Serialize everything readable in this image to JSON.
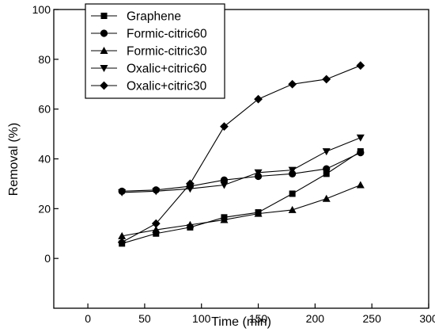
{
  "chart_data": {
    "type": "line",
    "title": "",
    "xlabel": "Time (min)",
    "ylabel": "Removal (%)",
    "xlim": [
      -30,
      300
    ],
    "ylim": [
      -20,
      100
    ],
    "xticks": [
      0,
      50,
      100,
      150,
      200,
      250,
      300
    ],
    "yticks": [
      0,
      20,
      40,
      60,
      80,
      100
    ],
    "grid": false,
    "legend_position": "top-left",
    "series": [
      {
        "name": "Graphene",
        "marker": "square",
        "x": [
          30,
          60,
          90,
          120,
          150,
          180,
          210,
          240
        ],
        "y": [
          6,
          10,
          12.5,
          16.5,
          18.5,
          26,
          34,
          43
        ]
      },
      {
        "name": "Formic-citric60",
        "marker": "circle",
        "x": [
          30,
          60,
          90,
          120,
          150,
          180,
          210,
          240
        ],
        "y": [
          27,
          27.5,
          29,
          31.5,
          33,
          34,
          36,
          42.5
        ]
      },
      {
        "name": "Formic-citric30",
        "marker": "triangle-up",
        "x": [
          30,
          60,
          90,
          120,
          150,
          180,
          210,
          240
        ],
        "y": [
          9,
          11.5,
          13.5,
          15.5,
          18,
          19.5,
          24,
          29.5
        ]
      },
      {
        "name": "Oxalic+citric60",
        "marker": "triangle-down",
        "x": [
          30,
          60,
          90,
          120,
          150,
          180,
          210,
          240
        ],
        "y": [
          26.5,
          27,
          28,
          29.5,
          34.5,
          35.5,
          43,
          48.5
        ]
      },
      {
        "name": "Oxalic+citric30",
        "marker": "diamond",
        "x": [
          30,
          60,
          90,
          120,
          150,
          180,
          210,
          240
        ],
        "y": [
          6.5,
          14,
          30,
          53,
          64,
          70,
          72,
          77.5
        ]
      }
    ]
  }
}
